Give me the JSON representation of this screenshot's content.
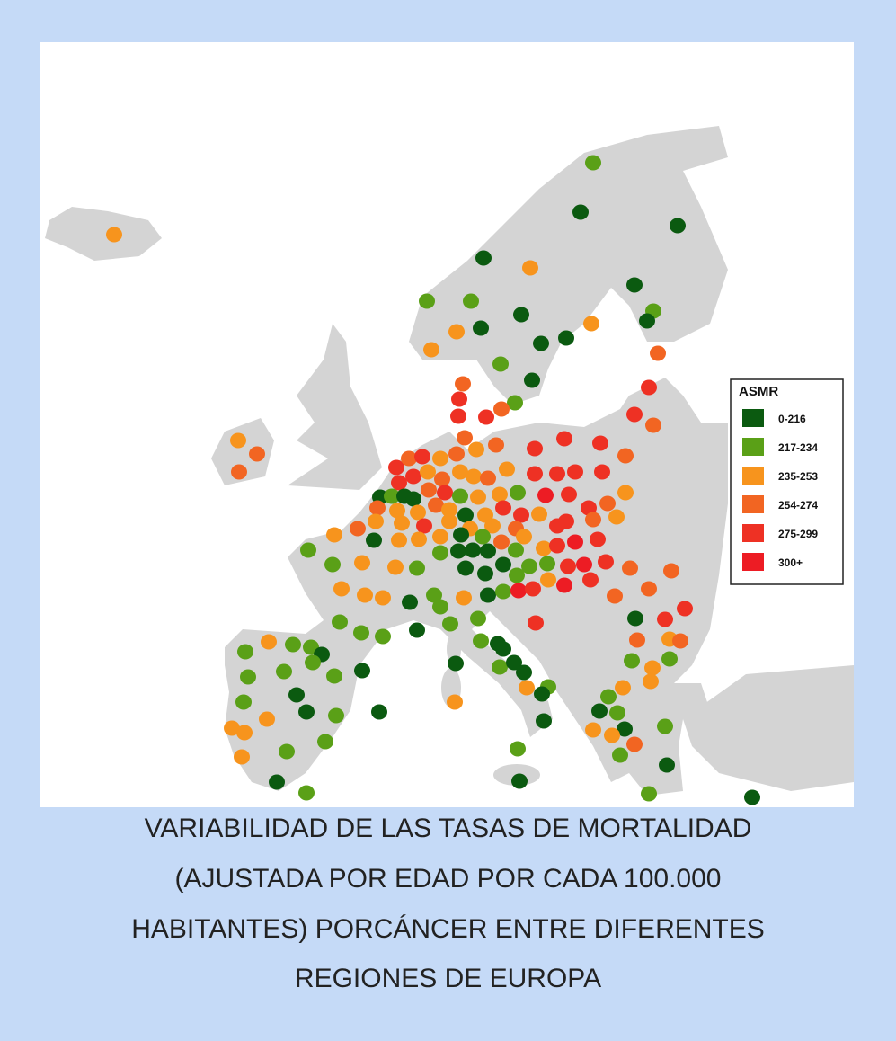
{
  "map": {
    "legend": {
      "title": "ASMR",
      "items": [
        {
          "label": "0-216",
          "color": "#0b5a10"
        },
        {
          "label": "217-234",
          "color": "#5aa017"
        },
        {
          "label": "235-253",
          "color": "#f7941d"
        },
        {
          "label": "254-274",
          "color": "#f26522"
        },
        {
          "label": "275-299",
          "color": "#ee3124"
        },
        {
          "label": "300+",
          "color": "#ed1c24"
        }
      ]
    }
  },
  "caption": {
    "lines": [
      "VARIABILIDAD DE LAS TASAS DE MORTALIDAD",
      "(AJUSTADA POR EDAD POR CADA 100.000",
      "HABITANTES) PORCÁNCER ENTRE DIFERENTES",
      "REGIONES DE EUROPA"
    ]
  }
}
